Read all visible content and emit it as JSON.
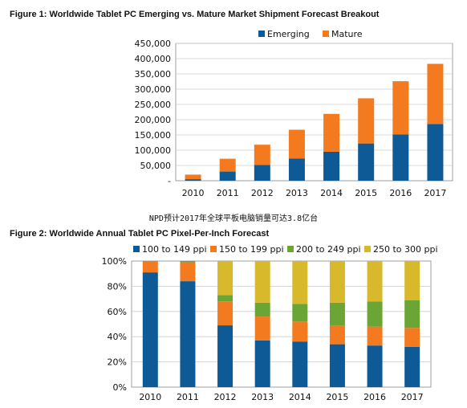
{
  "caption": "NPD预计2017年全球平板电脑销量可达3.8亿台",
  "colors": {
    "emerging": "#0d5a96",
    "mature": "#f47a20",
    "ppi100": "#0d5a96",
    "ppi150": "#f47a20",
    "ppi200": "#6aa536",
    "ppi250": "#d8b92c",
    "grid": "#cccccc",
    "axis": "#888888"
  },
  "chart_data": [
    {
      "type": "bar",
      "stacked": true,
      "title": "Figure 1: Worldwide Tablet PC Emerging vs. Mature Market Shipment Forecast Breakout",
      "categories": [
        "2010",
        "2011",
        "2012",
        "2013",
        "2014",
        "2015",
        "2016",
        "2017"
      ],
      "series": [
        {
          "name": "Emerging",
          "values": [
            5000,
            30000,
            52000,
            73000,
            95000,
            122000,
            152000,
            186000
          ]
        },
        {
          "name": "Mature",
          "values": [
            15000,
            42000,
            66000,
            94000,
            124000,
            148000,
            174000,
            197000
          ]
        }
      ],
      "ylim": [
        0,
        450000
      ],
      "yticks": [
        "-",
        "50,000",
        "100,000",
        "150,000",
        "200,000",
        "250,000",
        "300,000",
        "350,000",
        "400,000",
        "450,000"
      ],
      "legend": "top-right",
      "grid": true
    },
    {
      "type": "bar",
      "stacked": true,
      "title": "Figure 2: Worldwide Annual Tablet PC Pixel-Per-Inch Forecast",
      "categories": [
        "2010",
        "2011",
        "2012",
        "2013",
        "2014",
        "2015",
        "2016",
        "2017"
      ],
      "series": [
        {
          "name": "100 to 149 ppi",
          "values": [
            91,
            84,
            49,
            37,
            36,
            34,
            33,
            32
          ]
        },
        {
          "name": "150 to 199 ppi",
          "values": [
            9,
            15,
            19,
            19,
            16,
            15,
            15,
            15
          ]
        },
        {
          "name": "200 to 249 ppi",
          "values": [
            0,
            1,
            5,
            11,
            14,
            18,
            20,
            22
          ]
        },
        {
          "name": "250 to 300 ppi",
          "values": [
            0,
            0,
            27,
            33,
            34,
            33,
            32,
            31
          ]
        }
      ],
      "ylim": [
        0,
        100
      ],
      "yticks": [
        "0%",
        "20%",
        "40%",
        "60%",
        "80%",
        "100%"
      ],
      "legend": "top",
      "grid": true
    }
  ]
}
